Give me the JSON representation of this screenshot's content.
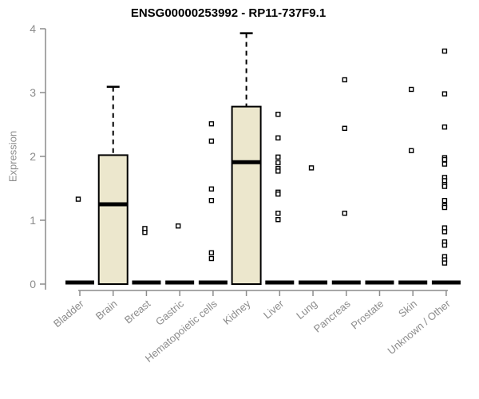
{
  "chart_data": {
    "type": "boxplot",
    "title": "ENSG00000253992 - RP11-737F9.1",
    "ylabel": "Expression",
    "xlabel": "",
    "ylim": [
      0,
      4
    ],
    "yticks": [
      "0",
      "1",
      "2",
      "3",
      "4"
    ],
    "grid": "off",
    "legend": "none",
    "colors": {
      "box_fill": "#ece7cd",
      "box_stroke": "#000000",
      "median": "#000000",
      "outlier_stroke": "#000000",
      "outlier_fill": "#ffffff",
      "axis": "#8c8c8c",
      "tick_label": "#8c8c8c",
      "title": "#000000"
    },
    "categories": [
      {
        "label": "Bladder",
        "q1": 0,
        "median": 0,
        "q3": 0,
        "whisker_low": 0,
        "whisker_high": 0,
        "outliers": [
          1.33
        ]
      },
      {
        "label": "Brain",
        "q1": 0,
        "median": 1.25,
        "q3": 2.02,
        "whisker_low": 0,
        "whisker_high": 3.09,
        "outliers": []
      },
      {
        "label": "Breast",
        "q1": 0,
        "median": 0,
        "q3": 0,
        "whisker_low": 0,
        "whisker_high": 0,
        "outliers": [
          0.87,
          0.81
        ]
      },
      {
        "label": "Gastric",
        "q1": 0,
        "median": 0,
        "q3": 0,
        "whisker_low": 0,
        "whisker_high": 0,
        "outliers": [
          0.91
        ]
      },
      {
        "label": "Hematopoietic cells",
        "q1": 0,
        "median": 0,
        "q3": 0,
        "whisker_low": 0,
        "whisker_high": 0,
        "outliers": [
          2.51,
          2.24,
          1.49,
          1.31,
          0.49,
          0.4
        ]
      },
      {
        "label": "Kidney",
        "q1": 0,
        "median": 1.91,
        "q3": 2.78,
        "whisker_low": 0,
        "whisker_high": 3.93,
        "outliers": []
      },
      {
        "label": "Liver",
        "q1": 0,
        "median": 0,
        "q3": 0,
        "whisker_low": 0,
        "whisker_high": 0,
        "outliers": [
          2.66,
          2.29,
          1.99,
          1.9,
          1.81,
          1.77,
          1.44,
          1.41,
          1.11,
          1.01
        ]
      },
      {
        "label": "Lung",
        "q1": 0,
        "median": 0,
        "q3": 0,
        "whisker_low": 0,
        "whisker_high": 0,
        "outliers": [
          1.82
        ]
      },
      {
        "label": "Pancreas",
        "q1": 0,
        "median": 0,
        "q3": 0,
        "whisker_low": 0,
        "whisker_high": 0,
        "outliers": [
          3.2,
          2.44,
          1.11
        ]
      },
      {
        "label": "Prostate",
        "q1": 0,
        "median": 0,
        "q3": 0,
        "whisker_low": 0,
        "whisker_high": 0,
        "outliers": []
      },
      {
        "label": "Skin",
        "q1": 0,
        "median": 0,
        "q3": 0,
        "whisker_low": 0,
        "whisker_high": 0,
        "outliers": [
          3.05,
          2.09
        ]
      },
      {
        "label": "Unknown / Other",
        "q1": 0,
        "median": 0,
        "q3": 0,
        "whisker_low": 0,
        "whisker_high": 0,
        "outliers": [
          3.65,
          2.98,
          2.46,
          1.98,
          1.95,
          1.88,
          1.67,
          1.62,
          1.56,
          1.53,
          1.31,
          1.23,
          1.2,
          0.88,
          0.82,
          0.66,
          0.61,
          0.43,
          0.38,
          0.33
        ]
      }
    ]
  }
}
